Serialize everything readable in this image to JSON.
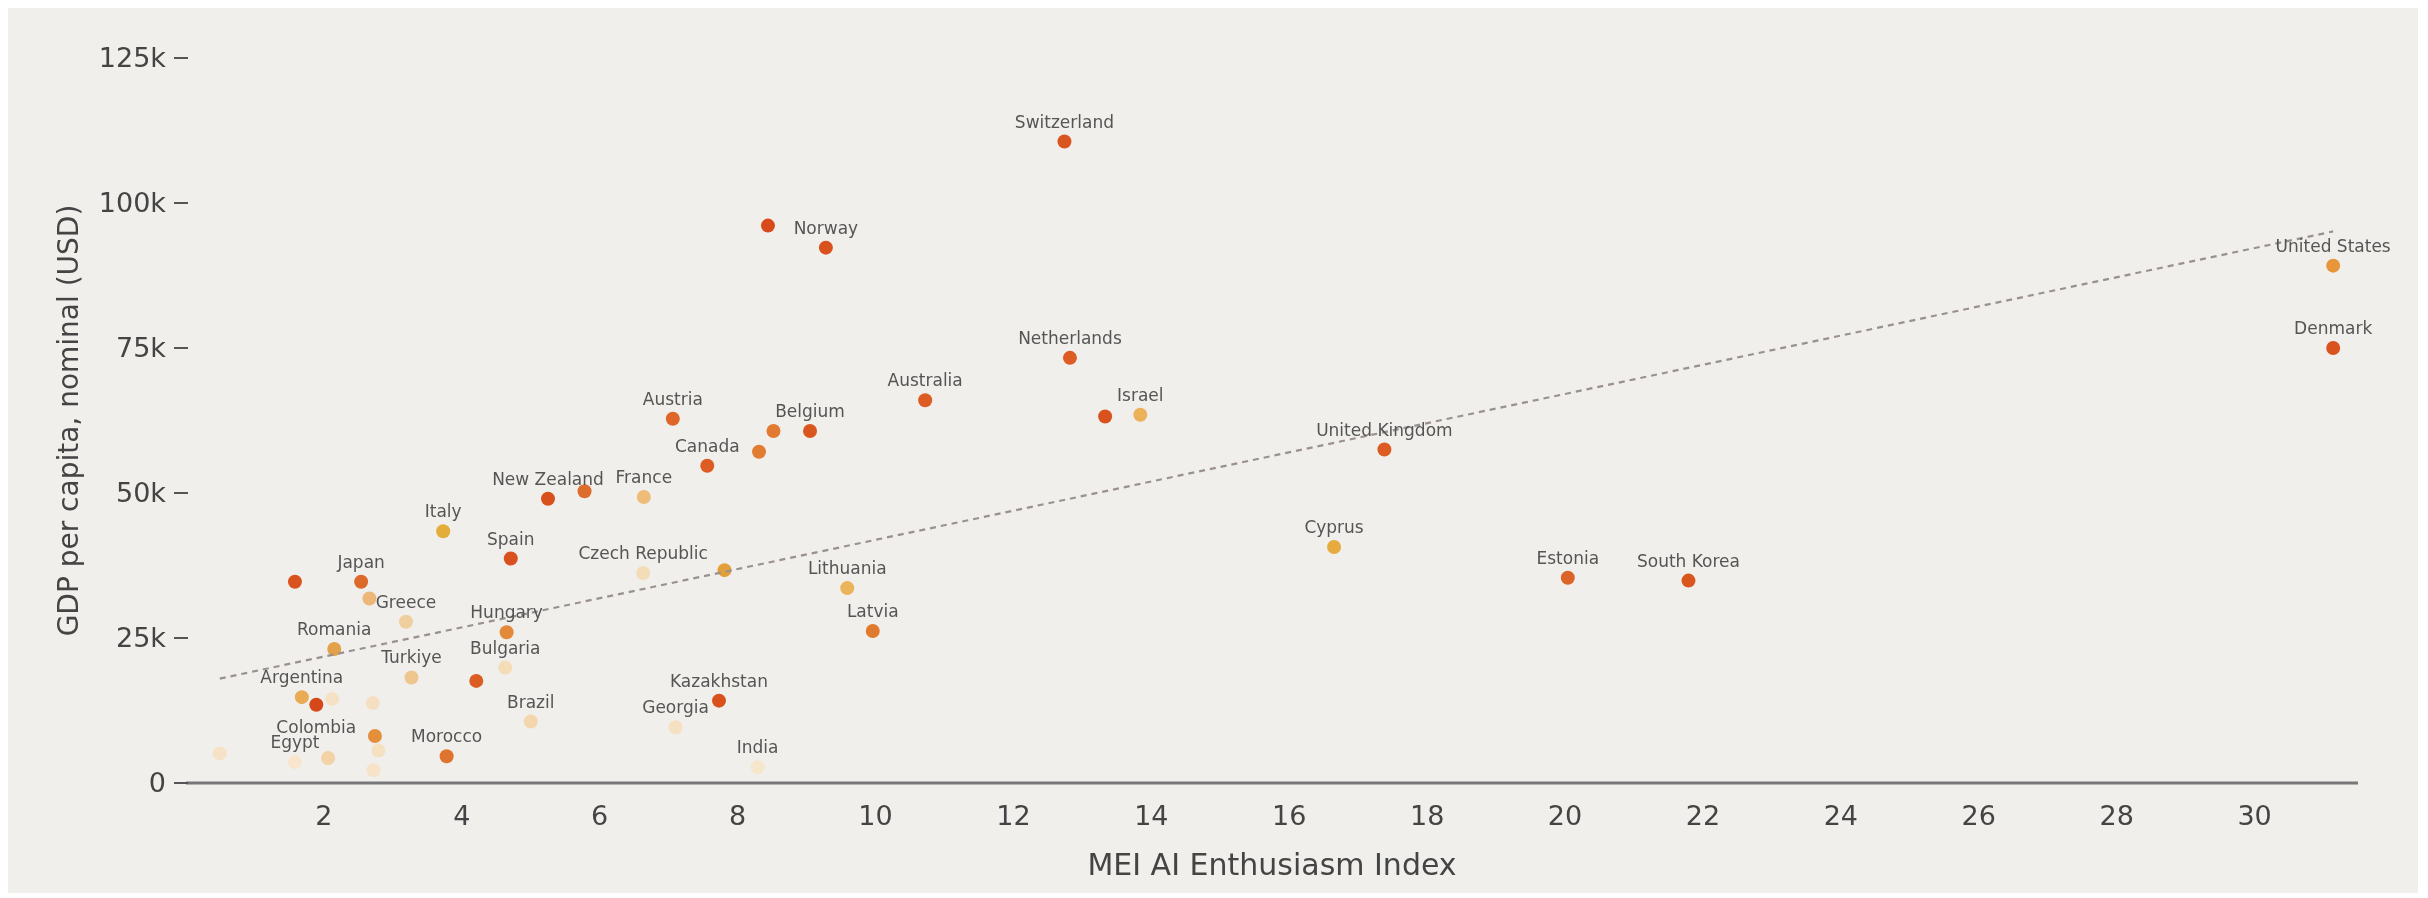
{
  "chart_data": {
    "type": "scatter",
    "xlabel": "MEI AI Enthusiasm Index",
    "ylabel": "GDP per capita, nominal (USD)",
    "xlim": [
      0,
      31.5
    ],
    "xticks": [
      2,
      4,
      6,
      8,
      10,
      12,
      14,
      16,
      18,
      20,
      22,
      24,
      26,
      28,
      30
    ],
    "ylim": [
      0,
      125000
    ],
    "yticks": [
      {
        "value": 0,
        "label": "0"
      },
      {
        "value": 25000,
        "label": "25k"
      },
      {
        "value": 50000,
        "label": "50k"
      },
      {
        "value": 75000,
        "label": "75k"
      },
      {
        "value": 100000,
        "label": "100k"
      },
      {
        "value": 125000,
        "label": "125k"
      }
    ],
    "grid": false,
    "marker": "circle",
    "series": [
      {
        "x": [
          1.58,
          2.54,
          2.66,
          3.19,
          2.15,
          3.27,
          4.21,
          4.65,
          4.63,
          5.0,
          1.68,
          1.89,
          2.12,
          2.71,
          2.74,
          2.79,
          2.72,
          1.58,
          2.06,
          0.49,
          3.78,
          3.73,
          4.71,
          5.25,
          5.78,
          6.64,
          6.63,
          7.81,
          7.06,
          7.56,
          8.31,
          8.52,
          7.1,
          7.73,
          8.29,
          8.44,
          9.28,
          12.74,
          12.82,
          10.72,
          9.05,
          13.33,
          13.84,
          17.38,
          16.65,
          20.04,
          9.59,
          9.96,
          21.79,
          31.14,
          31.14
        ],
        "values": [
          34700,
          34700,
          31800,
          27800,
          23100,
          18200,
          17600,
          26000,
          19900,
          10600,
          14800,
          13500,
          14500,
          13800,
          8100,
          5600,
          2200,
          3600,
          4300,
          5100,
          4600,
          43400,
          38700,
          49000,
          50300,
          49300,
          36200,
          36700,
          62800,
          54700,
          57100,
          60700,
          9600,
          14200,
          2700,
          96100,
          92300,
          110600,
          73300,
          66000,
          60700,
          63200,
          63500,
          57500,
          40700,
          35400,
          33600,
          26200,
          34900,
          89200,
          75000
        ],
        "colors": [
          "#d9531e",
          "#dc6a2a",
          "#eeb77a",
          "#f0cf9f",
          "#e3a24a",
          "#f0c690",
          "#da5e24",
          "#e38a3a",
          "#f3dcb6",
          "#f3d6ad",
          "#e9ac55",
          "#d6481a",
          "#f5e2c6",
          "#f5dfc2",
          "#e48f3c",
          "#f5e0c2",
          "#f6e3c8",
          "#f7e6cd",
          "#f3d2a6",
          "#f6e2c6",
          "#de742e",
          "#e3ad3a",
          "#d8511e",
          "#d8501c",
          "#dd6d2c",
          "#eebc78",
          "#f3dcb8",
          "#e2a03a",
          "#de6628",
          "#dc5c24",
          "#e27c30",
          "#e27a32",
          "#f5e0c2",
          "#d9521e",
          "#f6e6cb",
          "#d84a1a",
          "#d9521e",
          "#da5620",
          "#dc5c24",
          "#dc5c24",
          "#d9561e",
          "#d9521e",
          "#ebb25a",
          "#dc5c24",
          "#e6aa3e",
          "#dc6428",
          "#ebb45a",
          "#e07a2e",
          "#d9561e",
          "#e8963a",
          "#d9531e"
        ]
      },
      {
        "type": "line",
        "x": [
          0.49,
          31.14
        ],
        "values": [
          18000,
          95100
        ],
        "color": "#9a9090",
        "line_style": "dashed",
        "marker": "none"
      }
    ],
    "annotations": [
      {
        "text": "Japan",
        "x": 2.54,
        "y": 34700
      },
      {
        "text": "Greece",
        "x": 3.19,
        "y": 27800
      },
      {
        "text": "Romania",
        "x": 2.15,
        "y": 23100
      },
      {
        "text": "Turkiye",
        "x": 3.27,
        "y": 18200
      },
      {
        "text": "Hungary",
        "x": 4.65,
        "y": 26000
      },
      {
        "text": "Bulgaria",
        "x": 4.63,
        "y": 19900
      },
      {
        "text": "Brazil",
        "x": 5.0,
        "y": 10600
      },
      {
        "text": "Argentina",
        "x": 1.68,
        "y": 14800
      },
      {
        "text": "Colombia",
        "x": 1.89,
        "y": 13500
      },
      {
        "text": "Egypt",
        "x": 1.58,
        "y": 3600
      },
      {
        "text": "Morocco",
        "x": 3.78,
        "y": 4600
      },
      {
        "text": "Italy",
        "x": 3.73,
        "y": 43400
      },
      {
        "text": "Spain",
        "x": 4.71,
        "y": 38700
      },
      {
        "text": "New Zealand",
        "x": 5.25,
        "y": 49000
      },
      {
        "text": "France",
        "x": 6.64,
        "y": 49300
      },
      {
        "text": "Czech Republic",
        "x": 6.63,
        "y": 36200
      },
      {
        "text": "Austria",
        "x": 7.06,
        "y": 62800
      },
      {
        "text": "Canada",
        "x": 7.56,
        "y": 54700
      },
      {
        "text": "Georgia",
        "x": 7.1,
        "y": 9600
      },
      {
        "text": "Kazakhstan",
        "x": 7.73,
        "y": 14200
      },
      {
        "text": "India",
        "x": 8.29,
        "y": 2700
      },
      {
        "text": "Norway",
        "x": 9.28,
        "y": 92300
      },
      {
        "text": "Switzerland",
        "x": 12.74,
        "y": 110600
      },
      {
        "text": "Netherlands",
        "x": 12.82,
        "y": 73300
      },
      {
        "text": "Australia",
        "x": 10.72,
        "y": 66000
      },
      {
        "text": "Belgium",
        "x": 9.05,
        "y": 60700
      },
      {
        "text": "Israel",
        "x": 13.84,
        "y": 63500
      },
      {
        "text": "United Kingdom",
        "x": 17.38,
        "y": 57500
      },
      {
        "text": "Cyprus",
        "x": 16.65,
        "y": 40700
      },
      {
        "text": "Estonia",
        "x": 20.04,
        "y": 35400
      },
      {
        "text": "Lithuania",
        "x": 9.59,
        "y": 33600
      },
      {
        "text": "Latvia",
        "x": 9.96,
        "y": 26200
      },
      {
        "text": "South Korea",
        "x": 21.79,
        "y": 34900
      },
      {
        "text": "United States",
        "x": 31.14,
        "y": 89200
      },
      {
        "text": "Denmark",
        "x": 31.14,
        "y": 75000
      }
    ]
  }
}
